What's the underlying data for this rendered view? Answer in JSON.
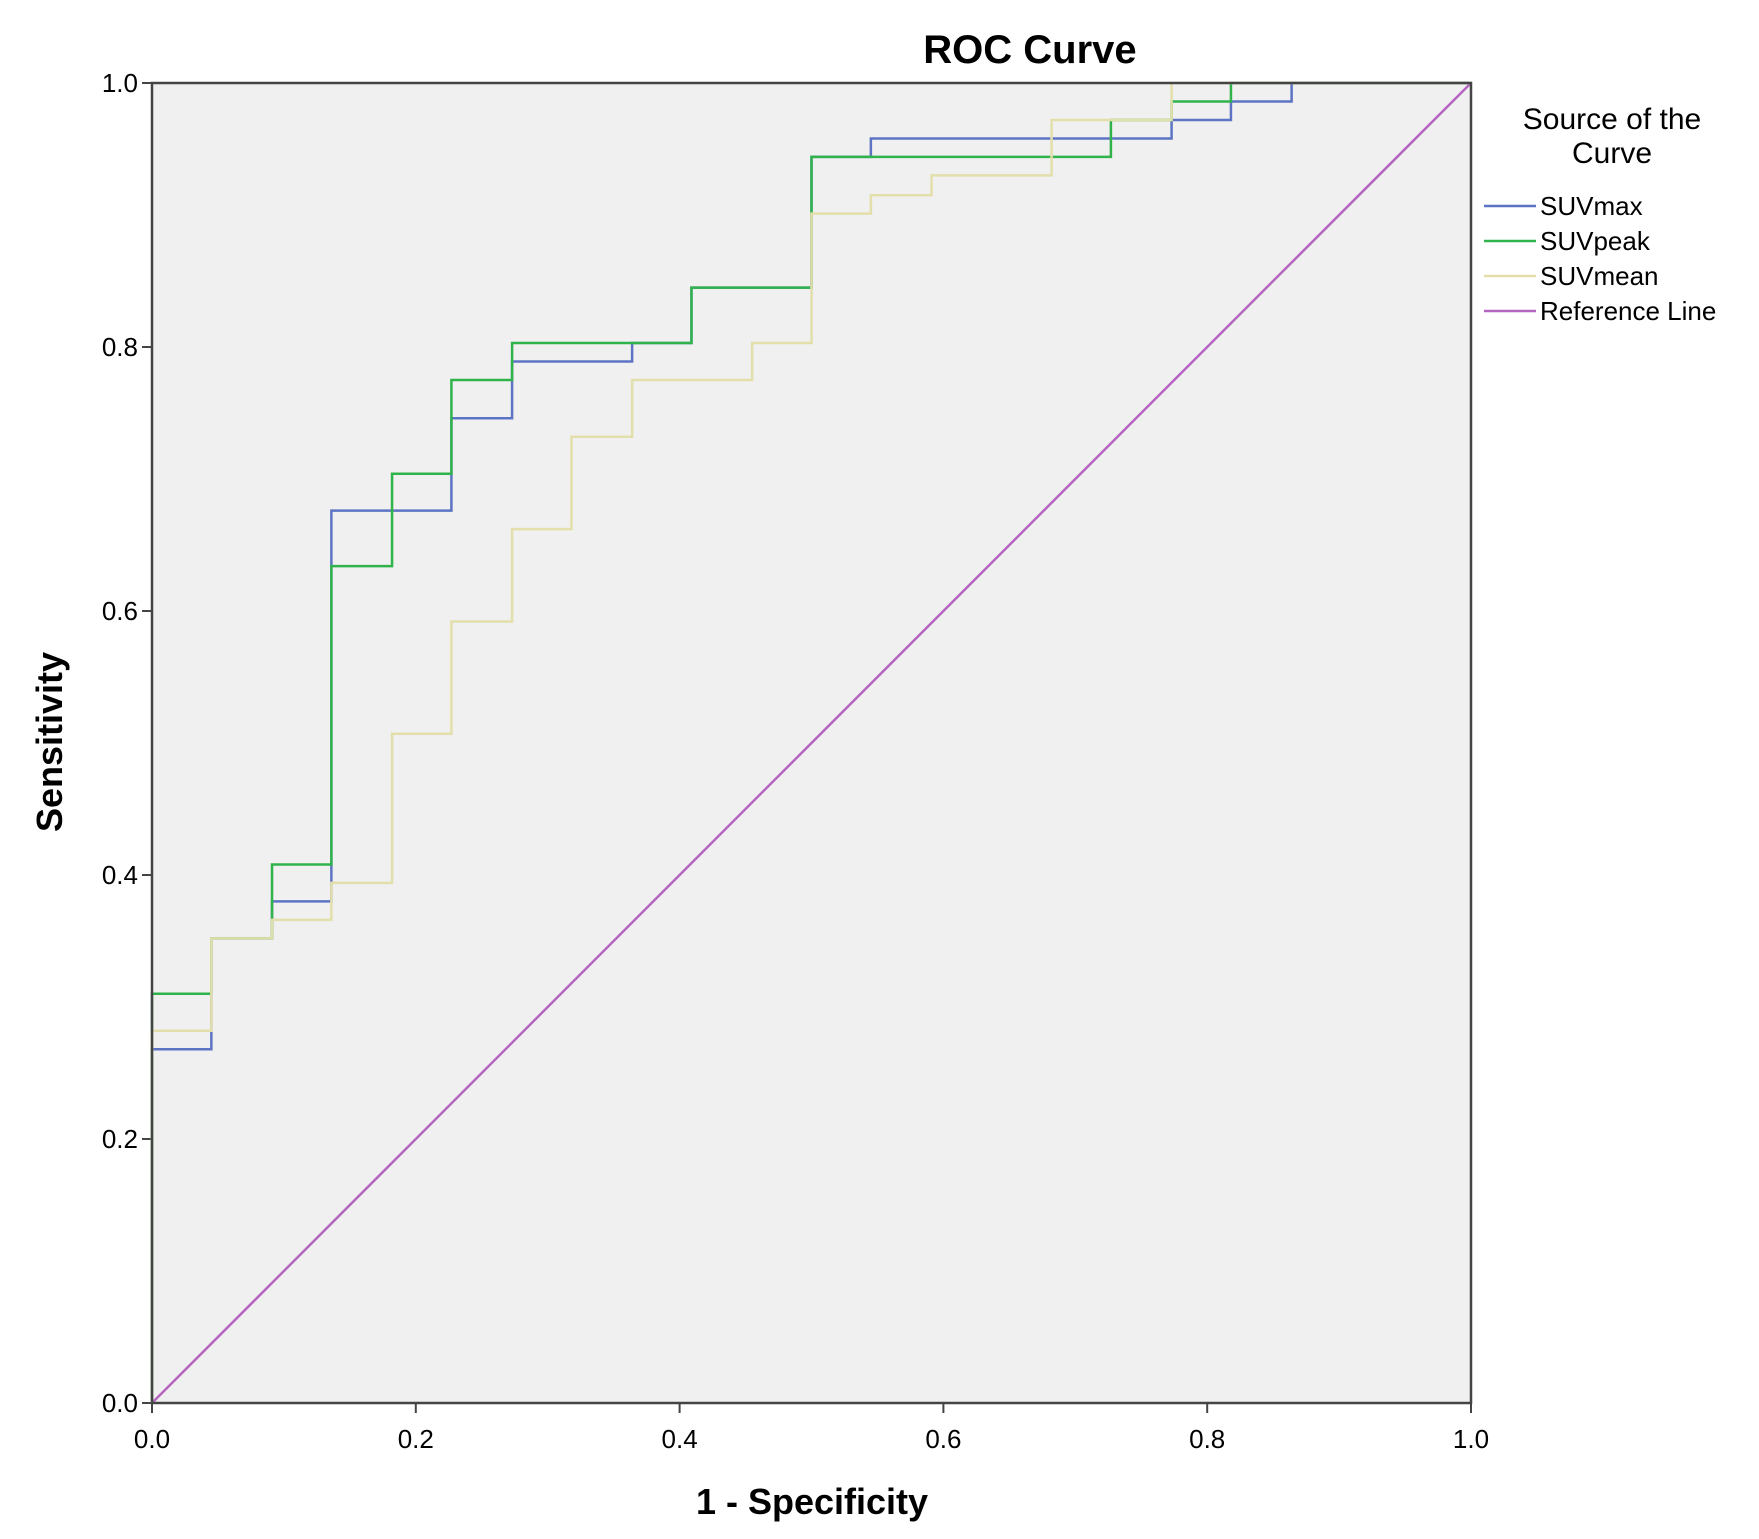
{
  "chart_data": {
    "type": "line",
    "title": "ROC Curve",
    "xlabel": "1 - Specificity",
    "ylabel": "Sensitivity",
    "xlim": [
      0,
      1
    ],
    "ylim": [
      0,
      1
    ],
    "xticks": [
      "0.0",
      "0.2",
      "0.4",
      "0.6",
      "0.8",
      "1.0"
    ],
    "yticks": [
      "0.0",
      "0.2",
      "0.4",
      "0.6",
      "0.8",
      "1.0"
    ],
    "plot_background": "#f0f0f0",
    "legend": {
      "title_line1": "Source of the",
      "title_line2": "Curve",
      "placement": "right"
    },
    "series": [
      {
        "name": "SUVmax",
        "color": "#5d74c4",
        "points": [
          [
            0,
            0
          ],
          [
            0,
            0.268
          ],
          [
            0.045,
            0.268
          ],
          [
            0.045,
            0.352
          ],
          [
            0.091,
            0.352
          ],
          [
            0.091,
            0.38
          ],
          [
            0.136,
            0.38
          ],
          [
            0.136,
            0.676
          ],
          [
            0.227,
            0.676
          ],
          [
            0.227,
            0.746
          ],
          [
            0.273,
            0.746
          ],
          [
            0.273,
            0.789
          ],
          [
            0.364,
            0.789
          ],
          [
            0.364,
            0.803
          ],
          [
            0.409,
            0.803
          ],
          [
            0.409,
            0.845
          ],
          [
            0.5,
            0.845
          ],
          [
            0.5,
            0.944
          ],
          [
            0.545,
            0.944
          ],
          [
            0.545,
            0.958
          ],
          [
            0.773,
            0.958
          ],
          [
            0.773,
            0.972
          ],
          [
            0.818,
            0.972
          ],
          [
            0.818,
            0.986
          ],
          [
            0.864,
            0.986
          ],
          [
            0.864,
            1.0
          ],
          [
            1.0,
            1.0
          ]
        ]
      },
      {
        "name": "SUVpeak",
        "color": "#2fb34a",
        "points": [
          [
            0,
            0
          ],
          [
            0,
            0.31
          ],
          [
            0.045,
            0.31
          ],
          [
            0.045,
            0.352
          ],
          [
            0.091,
            0.352
          ],
          [
            0.091,
            0.408
          ],
          [
            0.136,
            0.408
          ],
          [
            0.136,
            0.634
          ],
          [
            0.182,
            0.634
          ],
          [
            0.182,
            0.704
          ],
          [
            0.227,
            0.704
          ],
          [
            0.227,
            0.775
          ],
          [
            0.273,
            0.775
          ],
          [
            0.273,
            0.803
          ],
          [
            0.409,
            0.803
          ],
          [
            0.409,
            0.845
          ],
          [
            0.5,
            0.845
          ],
          [
            0.5,
            0.944
          ],
          [
            0.727,
            0.944
          ],
          [
            0.727,
            0.972
          ],
          [
            0.773,
            0.972
          ],
          [
            0.773,
            0.986
          ],
          [
            0.818,
            0.986
          ],
          [
            0.818,
            1.0
          ],
          [
            1.0,
            1.0
          ]
        ]
      },
      {
        "name": "SUVmean",
        "color": "#e3dfab",
        "points": [
          [
            0,
            0
          ],
          [
            0,
            0.282
          ],
          [
            0.045,
            0.282
          ],
          [
            0.045,
            0.352
          ],
          [
            0.091,
            0.352
          ],
          [
            0.091,
            0.366
          ],
          [
            0.136,
            0.366
          ],
          [
            0.136,
            0.394
          ],
          [
            0.182,
            0.394
          ],
          [
            0.182,
            0.507
          ],
          [
            0.227,
            0.507
          ],
          [
            0.227,
            0.592
          ],
          [
            0.273,
            0.592
          ],
          [
            0.273,
            0.662
          ],
          [
            0.318,
            0.662
          ],
          [
            0.318,
            0.732
          ],
          [
            0.364,
            0.732
          ],
          [
            0.364,
            0.775
          ],
          [
            0.455,
            0.775
          ],
          [
            0.455,
            0.803
          ],
          [
            0.5,
            0.803
          ],
          [
            0.5,
            0.901
          ],
          [
            0.545,
            0.901
          ],
          [
            0.545,
            0.915
          ],
          [
            0.591,
            0.915
          ],
          [
            0.591,
            0.93
          ],
          [
            0.682,
            0.93
          ],
          [
            0.682,
            0.972
          ],
          [
            0.773,
            0.972
          ],
          [
            0.773,
            1.0
          ],
          [
            1.0,
            1.0
          ]
        ]
      },
      {
        "name": "Reference Line",
        "color": "#b565c1",
        "points": [
          [
            0,
            0
          ],
          [
            1,
            1
          ]
        ]
      }
    ]
  }
}
